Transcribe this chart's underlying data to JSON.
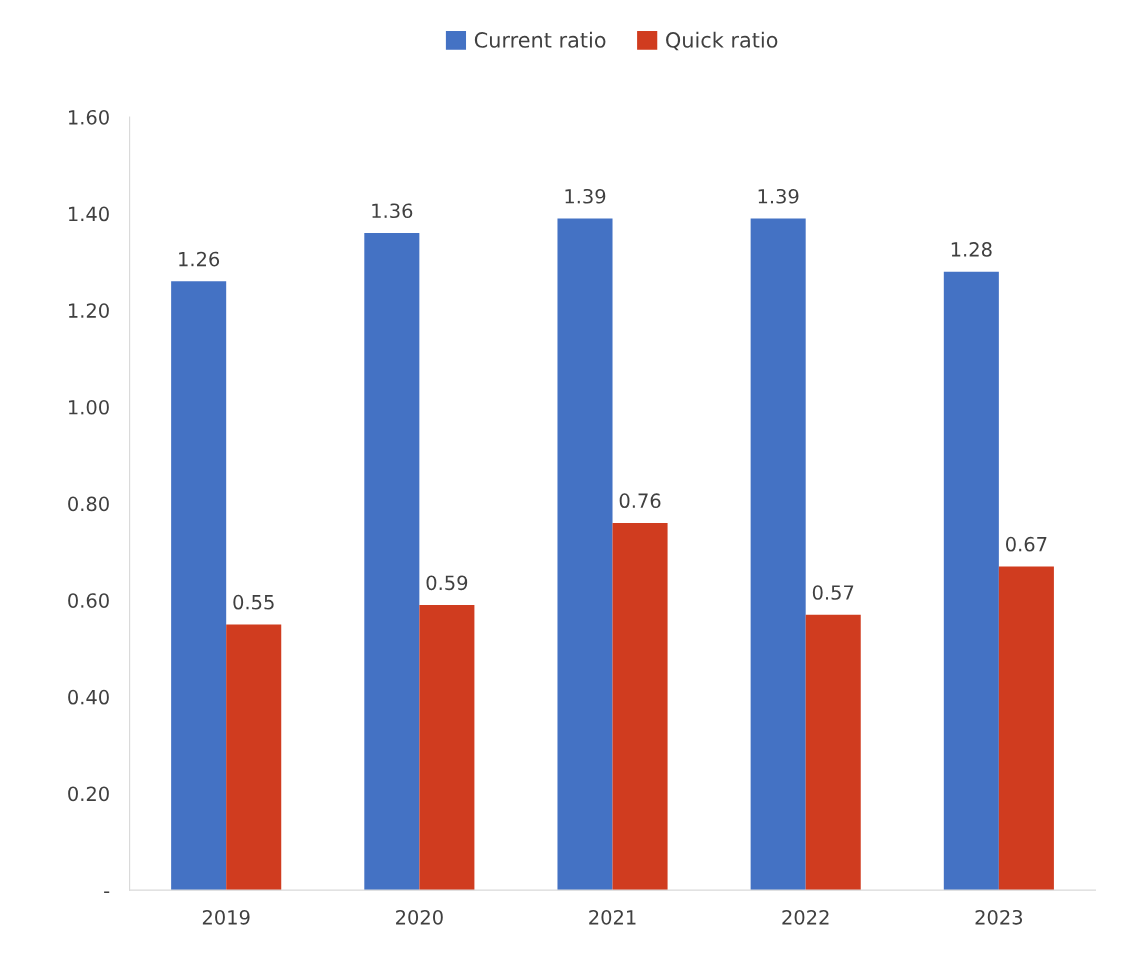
{
  "chart_data": {
    "type": "bar",
    "categories": [
      "2019",
      "2020",
      "2021",
      "2022",
      "2023"
    ],
    "series": [
      {
        "name": "Current ratio",
        "color": "#4472c4",
        "values": [
          1.26,
          1.36,
          1.39,
          1.39,
          1.28
        ]
      },
      {
        "name": "Quick ratio",
        "color": "#d03c1f",
        "values": [
          0.55,
          0.59,
          0.76,
          0.57,
          0.67
        ]
      }
    ],
    "ylim": [
      0,
      1.6
    ],
    "yticks": [
      {
        "value": 0,
        "label": "-"
      },
      {
        "value": 0.2,
        "label": "0.20"
      },
      {
        "value": 0.4,
        "label": "0.40"
      },
      {
        "value": 0.6,
        "label": "0.60"
      },
      {
        "value": 0.8,
        "label": "0.80"
      },
      {
        "value": 1.0,
        "label": "1.00"
      },
      {
        "value": 1.2,
        "label": "1.20"
      },
      {
        "value": 1.4,
        "label": "1.40"
      },
      {
        "value": 1.6,
        "label": "1.60"
      }
    ],
    "data_labels": true,
    "legend": "top",
    "grid": false
  }
}
